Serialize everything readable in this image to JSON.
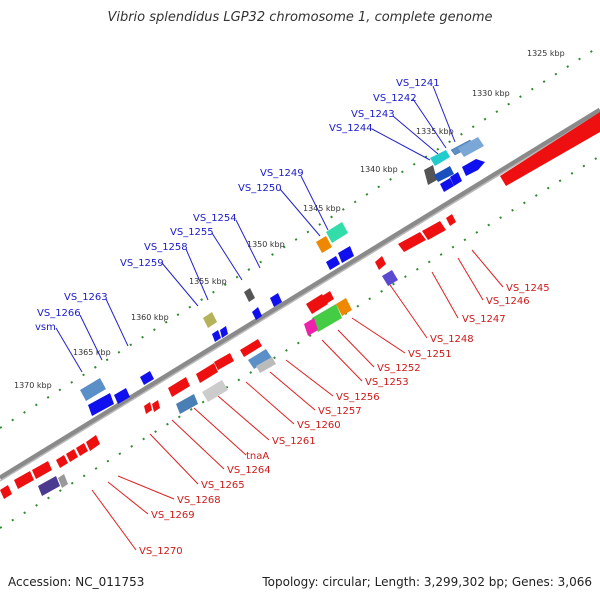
{
  "title": "Vibrio splendidus LGP32 chromosome 1, complete genome",
  "footer": {
    "accession": "Accession: NC_011753",
    "topology": "Topology: circular; Length: 3,299,302 bp; Genes: 3,066"
  },
  "scale_ticks": [
    "1325 kbp",
    "1330 kbp",
    "1335 kbp",
    "1340 kbp",
    "1345 kbp",
    "1350 kbp",
    "1355 kbp",
    "1360 kbp",
    "1365 kbp",
    "1370 kbp"
  ],
  "forward_labels": [
    "VS_1241",
    "VS_1242",
    "VS_1243",
    "VS_1244",
    "VS_1249",
    "VS_1250",
    "VS_1254",
    "VS_1255",
    "VS_1258",
    "VS_1259",
    "VS_1263",
    "VS_1266",
    "vsm"
  ],
  "reverse_labels": [
    "VS_1245",
    "VS_1246",
    "VS_1247",
    "VS_1248",
    "VS_1251",
    "VS_1252",
    "VS_1253",
    "VS_1256",
    "VS_1257",
    "VS_1260",
    "VS_1261",
    "tnaA",
    "VS_1264",
    "VS_1265",
    "VS_1268",
    "VS_1269",
    "VS_1270"
  ],
  "colors": {
    "forward_label": "#1a1acc",
    "reverse_label": "#cc1a1a",
    "backbone": "#777777",
    "tick": "#2e8b2e",
    "forward_gene": "#1010ee",
    "reverse_gene": "#ee1010"
  }
}
